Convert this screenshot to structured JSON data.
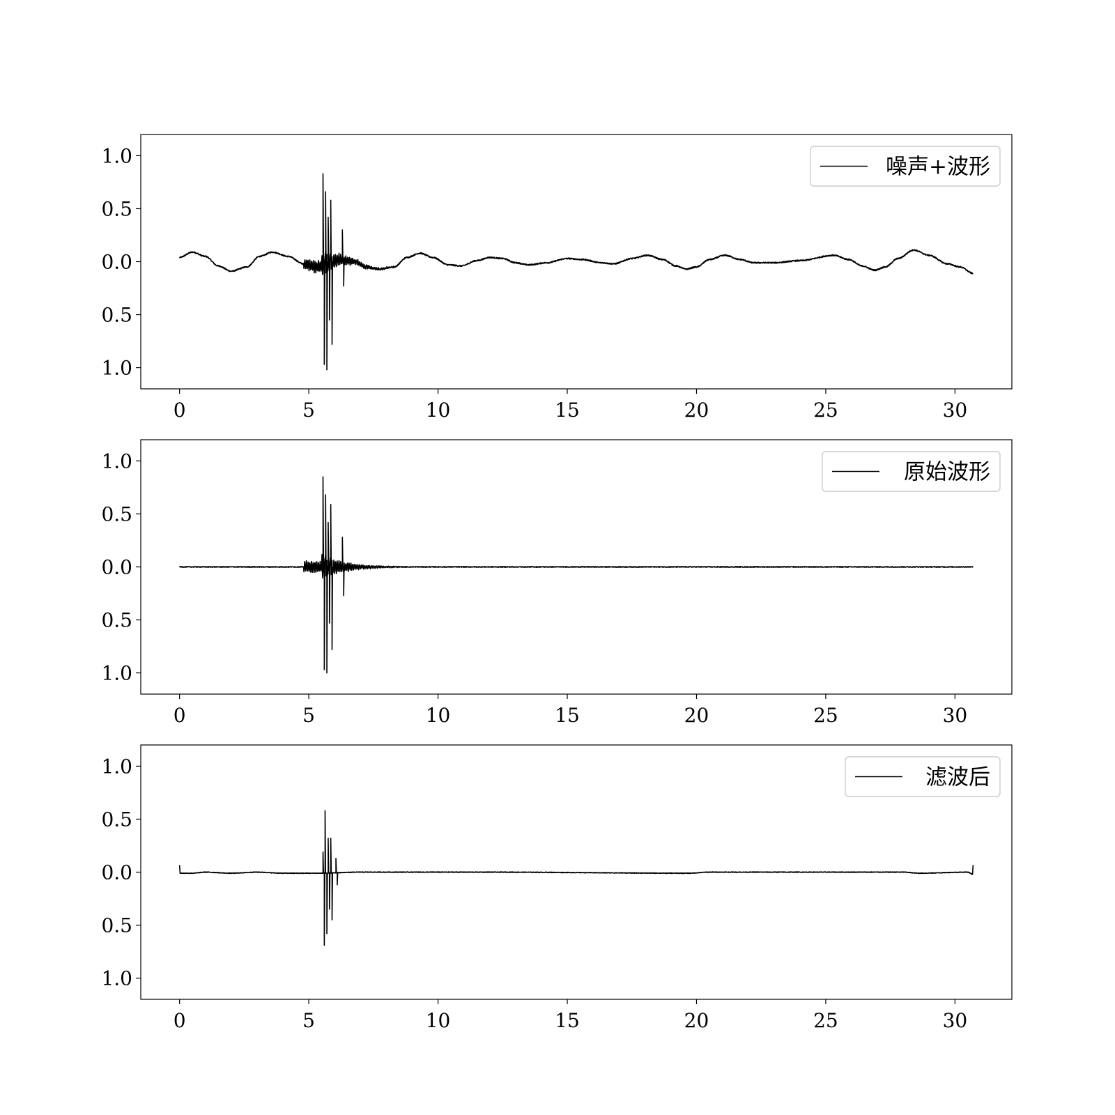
{
  "chart_data": [
    {
      "type": "line",
      "legend": "噪声+波形",
      "legend_position": "top-right",
      "xlim": [
        -1.5,
        32.2
      ],
      "ylim": [
        -1.2,
        1.2
      ],
      "x_ticks": [
        0,
        5,
        10,
        15,
        20,
        25,
        30
      ],
      "y_ticks": [
        1.0,
        0.5,
        0.0,
        -0.5,
        -1.0
      ],
      "x_tick_labels": [
        "0",
        "5",
        "10",
        "15",
        "20",
        "25",
        "30"
      ],
      "y_tick_labels": [
        "1.0",
        "0.5",
        "0.0",
        "0.5",
        "1.0"
      ],
      "x_range": [
        0,
        30.7
      ],
      "colors": {
        "line": "#000000"
      },
      "baseline": [
        [
          0,
          0.04
        ],
        [
          0.5,
          0.09
        ],
        [
          1,
          0.05
        ],
        [
          1.5,
          -0.04
        ],
        [
          2,
          -0.09
        ],
        [
          2.6,
          -0.05
        ],
        [
          3.1,
          0.05
        ],
        [
          3.6,
          0.09
        ],
        [
          4.2,
          0.05
        ],
        [
          4.8,
          -0.02
        ],
        [
          5.3,
          -0.05
        ],
        [
          6.2,
          0.02
        ],
        [
          6.8,
          0.0
        ],
        [
          7.2,
          -0.05
        ],
        [
          7.7,
          -0.07
        ],
        [
          8.3,
          -0.05
        ],
        [
          8.8,
          0.04
        ],
        [
          9.3,
          0.08
        ],
        [
          9.8,
          0.04
        ],
        [
          10.4,
          -0.03
        ],
        [
          10.9,
          -0.04
        ],
        [
          11.5,
          0.01
        ],
        [
          12,
          0.04
        ],
        [
          12.5,
          0.03
        ],
        [
          13,
          -0.01
        ],
        [
          13.5,
          -0.03
        ],
        [
          14.2,
          -0.01
        ],
        [
          15,
          0.03
        ],
        [
          15.6,
          0.02
        ],
        [
          16.3,
          -0.01
        ],
        [
          16.8,
          -0.02
        ],
        [
          17.5,
          0.03
        ],
        [
          18.1,
          0.06
        ],
        [
          18.7,
          0.02
        ],
        [
          19.2,
          -0.04
        ],
        [
          19.6,
          -0.07
        ],
        [
          20,
          -0.05
        ],
        [
          20.5,
          0.02
        ],
        [
          21.1,
          0.06
        ],
        [
          21.7,
          0.02
        ],
        [
          22.2,
          -0.01
        ],
        [
          23,
          -0.01
        ],
        [
          24,
          0.01
        ],
        [
          25.3,
          0.06
        ],
        [
          25.9,
          0.02
        ],
        [
          26.4,
          -0.04
        ],
        [
          26.9,
          -0.08
        ],
        [
          27.3,
          -0.05
        ],
        [
          27.8,
          0.03
        ],
        [
          28.4,
          0.11
        ],
        [
          29,
          0.06
        ],
        [
          29.7,
          -0.02
        ],
        [
          30.2,
          -0.05
        ],
        [
          30.7,
          -0.11
        ]
      ],
      "burst": {
        "start": 4.8,
        "peaks": [
          [
            5.55,
            0.83
          ],
          [
            5.6,
            -0.97
          ],
          [
            5.65,
            0.66
          ],
          [
            5.7,
            -1.02
          ],
          [
            5.75,
            0.42
          ],
          [
            5.8,
            -0.55
          ],
          [
            5.85,
            0.58
          ],
          [
            5.9,
            -0.78
          ],
          [
            6.3,
            0.3
          ],
          [
            6.35,
            -0.23
          ]
        ],
        "decay_end": 8.3,
        "noise_amp": 0.06,
        "ripple_amp": 0.006
      }
    },
    {
      "type": "line",
      "legend": "原始波形",
      "legend_position": "top-right",
      "xlim": [
        -1.5,
        32.2
      ],
      "ylim": [
        -1.2,
        1.2
      ],
      "x_ticks": [
        0,
        5,
        10,
        15,
        20,
        25,
        30
      ],
      "y_ticks": [
        1.0,
        0.5,
        0.0,
        -0.5,
        -1.0
      ],
      "x_tick_labels": [
        "0",
        "5",
        "10",
        "15",
        "20",
        "25",
        "30"
      ],
      "y_tick_labels": [
        "1.0",
        "0.5",
        "0.0",
        "0.5",
        "1.0"
      ],
      "x_range": [
        0,
        30.7
      ],
      "colors": {
        "line": "#000000"
      },
      "baseline": [
        [
          0,
          0.0
        ],
        [
          30.7,
          0.0
        ]
      ],
      "burst": {
        "start": 4.8,
        "peaks": [
          [
            5.55,
            0.85
          ],
          [
            5.6,
            -0.97
          ],
          [
            5.65,
            0.68
          ],
          [
            5.7,
            -1.0
          ],
          [
            5.75,
            0.42
          ],
          [
            5.8,
            -0.53
          ],
          [
            5.85,
            0.59
          ],
          [
            5.9,
            -0.78
          ],
          [
            6.3,
            0.28
          ],
          [
            6.35,
            -0.27
          ]
        ],
        "decay_end": 8.5,
        "noise_amp": 0.06,
        "ripple_amp": 0.004
      }
    },
    {
      "type": "line",
      "legend": "滤波后",
      "legend_position": "top-right",
      "xlim": [
        -1.5,
        32.2
      ],
      "ylim": [
        -1.2,
        1.2
      ],
      "x_ticks": [
        0,
        5,
        10,
        15,
        20,
        25,
        30
      ],
      "y_ticks": [
        1.0,
        0.5,
        0.0,
        -0.5,
        -1.0
      ],
      "x_tick_labels": [
        "0",
        "5",
        "10",
        "15",
        "20",
        "25",
        "30"
      ],
      "y_tick_labels": [
        "1.0",
        "0.5",
        "0.0",
        "0.5",
        "1.0"
      ],
      "x_range": [
        0,
        30.7
      ],
      "colors": {
        "line": "#000000"
      },
      "baseline": [
        [
          0,
          0.07
        ],
        [
          0.02,
          -0.01
        ],
        [
          0.5,
          -0.01
        ],
        [
          1,
          0.0
        ],
        [
          2,
          -0.01
        ],
        [
          3,
          0.0
        ],
        [
          4,
          -0.01
        ],
        [
          5.3,
          -0.01
        ],
        [
          7,
          0.0
        ],
        [
          12,
          0.0
        ],
        [
          19.7,
          -0.01
        ],
        [
          20.5,
          0.0
        ],
        [
          28,
          0.0
        ],
        [
          28.6,
          -0.01
        ],
        [
          30.5,
          0.0
        ],
        [
          30.68,
          -0.02
        ],
        [
          30.7,
          0.07
        ]
      ],
      "burst": {
        "start": 5.45,
        "peaks": [
          [
            5.55,
            0.19
          ],
          [
            5.6,
            -0.69
          ],
          [
            5.63,
            0.58
          ],
          [
            5.7,
            -0.58
          ],
          [
            5.75,
            0.32
          ],
          [
            5.8,
            -0.35
          ],
          [
            5.85,
            0.32
          ],
          [
            5.9,
            -0.45
          ],
          [
            6.05,
            0.13
          ],
          [
            6.1,
            -0.12
          ]
        ],
        "decay_end": 7.0,
        "noise_amp": 0.0,
        "ripple_amp": 0.003
      }
    }
  ]
}
